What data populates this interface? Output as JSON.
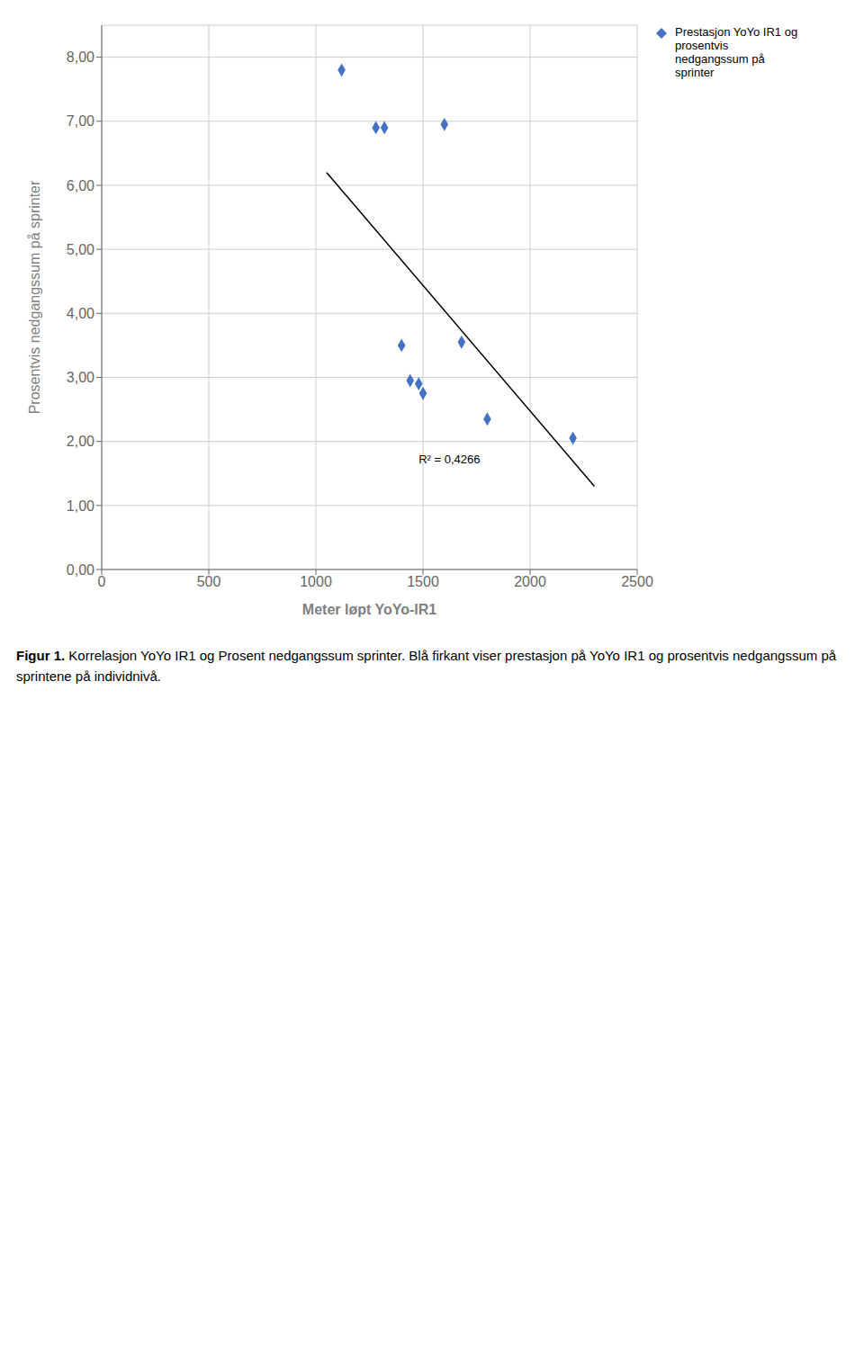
{
  "chart_data": {
    "type": "scatter",
    "xlabel": "Meter løpt YoYo-IR1",
    "ylabel": "Prosentvis nedgangssum på sprinter",
    "xlim": [
      0,
      2500
    ],
    "xticks": [
      0,
      500,
      1000,
      1500,
      2000,
      2500
    ],
    "ylim": [
      0.0,
      8.5
    ],
    "yticks": [
      {
        "value": 0.0,
        "label": "0,00"
      },
      {
        "value": 1.0,
        "label": "1,00"
      },
      {
        "value": 2.0,
        "label": "2,00"
      },
      {
        "value": 3.0,
        "label": "3,00"
      },
      {
        "value": 4.0,
        "label": "4,00"
      },
      {
        "value": 5.0,
        "label": "5,00"
      },
      {
        "value": 6.0,
        "label": "6,00"
      },
      {
        "value": 7.0,
        "label": "7,00"
      },
      {
        "value": 8.0,
        "label": "8,00"
      }
    ],
    "grid": true,
    "legend": "right",
    "series": [
      {
        "name": "Prestasjon YoYo IR1 og\nprosentvis\nnedgangssum på\nsprinter",
        "type": "scatter",
        "color": "#4472c4",
        "marker": "diamond",
        "x": [
          1120,
          1280,
          1320,
          1400,
          1440,
          1480,
          1500,
          1600,
          1680,
          1800,
          2200
        ],
        "values": [
          7.8,
          6.9,
          6.9,
          3.5,
          2.95,
          2.9,
          2.75,
          6.95,
          3.55,
          2.35,
          2.05
        ]
      },
      {
        "type": "line",
        "color": "#000000",
        "x": [
          1050,
          2300
        ],
        "values": [
          6.2,
          1.3
        ]
      }
    ],
    "annotations": [
      {
        "text": "R² = 0,4266",
        "x": 1480,
        "y": 1.6
      }
    ],
    "caption_label": "Figur 1.",
    "caption": "Korrelasjon YoYo IR1 og Prosent nedgangssum sprinter. Blå firkant viser prestasjon på YoYo IR1 og prosentvis nedgangssum på sprintene på individnivå."
  }
}
